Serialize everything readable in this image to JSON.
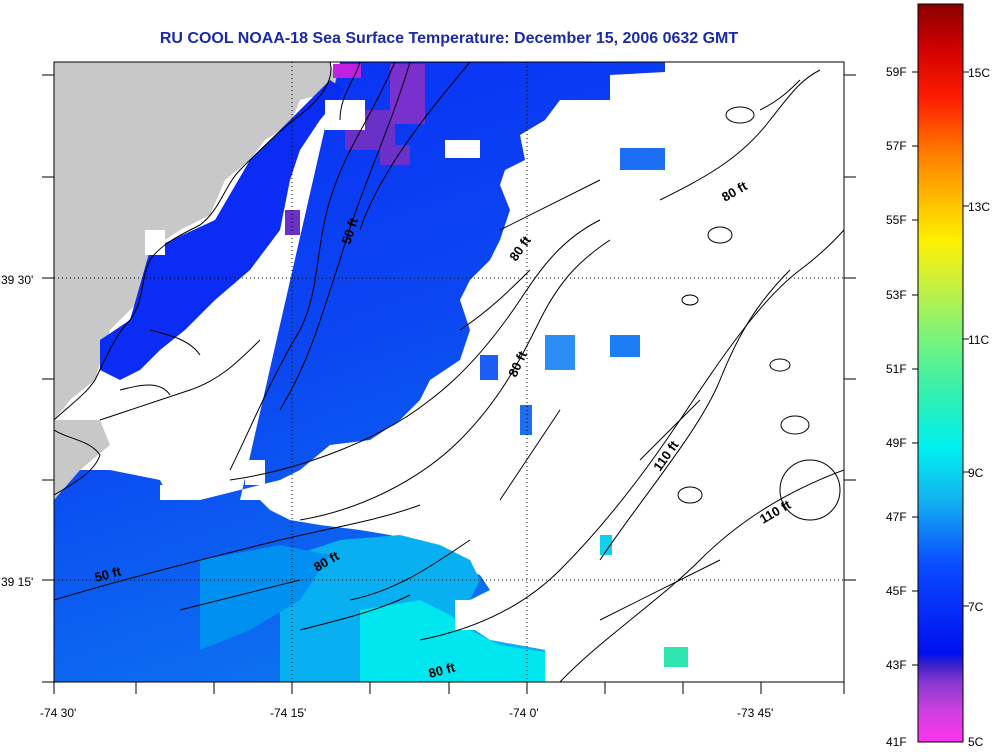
{
  "title": "RU COOL  NOAA-18  Sea Surface Temperature:  December 15, 2006 0632 GMT",
  "axes": {
    "x_ticks": [
      "-74 30'",
      "-74 15'",
      "-74 0'",
      "-73 45'"
    ],
    "y_ticks": [
      "39 30'",
      "39 15'"
    ]
  },
  "contour_labels": [
    {
      "text": "50 ft",
      "rotate": -72
    },
    {
      "text": "80 ft",
      "rotate": -55
    },
    {
      "text": "80 ft",
      "rotate": -65
    },
    {
      "text": "80 ft",
      "rotate": -30
    },
    {
      "text": "110 ft",
      "rotate": -55
    },
    {
      "text": "110 ft",
      "rotate": -30
    },
    {
      "text": "50 ft",
      "rotate": -15
    },
    {
      "text": "80 ft",
      "rotate": -30
    },
    {
      "text": "80 ft",
      "rotate": -15
    }
  ],
  "colorbar": {
    "fahrenheit": [
      "59F",
      "57F",
      "55F",
      "53F",
      "51F",
      "49F",
      "47F",
      "45F",
      "43F",
      "41F"
    ],
    "celsius": [
      "15C",
      "13C",
      "11C",
      "9C",
      "7C",
      "5C"
    ]
  },
  "colors": {
    "land": "#c8c8c8",
    "cloud": "#ffffff",
    "title": "#1a2aa8"
  }
}
